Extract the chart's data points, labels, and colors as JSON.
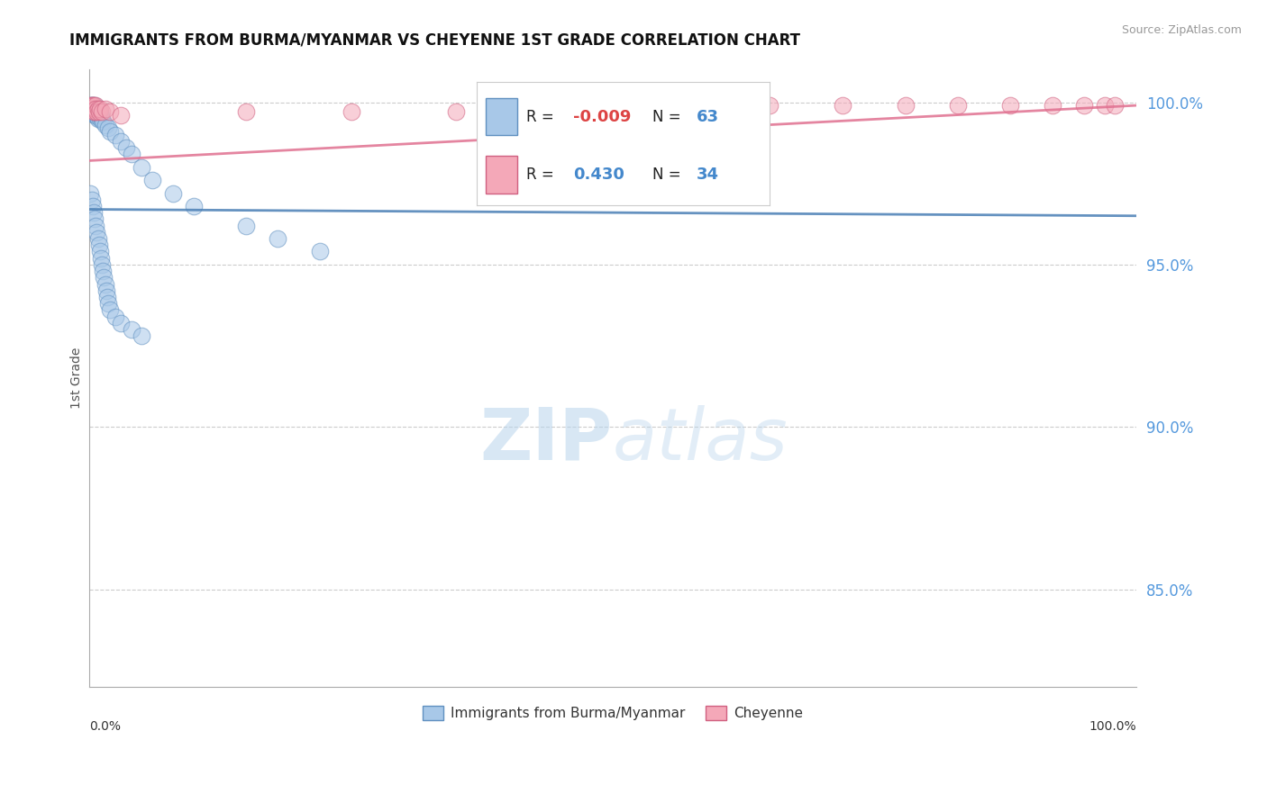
{
  "title": "IMMIGRANTS FROM BURMA/MYANMAR VS CHEYENNE 1ST GRADE CORRELATION CHART",
  "source": "Source: ZipAtlas.com",
  "ylabel": "1st Grade",
  "blue_label": "Immigrants from Burma/Myanmar",
  "pink_label": "Cheyenne",
  "blue_R": -0.009,
  "blue_N": 63,
  "pink_R": 0.43,
  "pink_N": 34,
  "blue_color": "#a8c8e8",
  "pink_color": "#f4a8b8",
  "blue_edge_color": "#6090c0",
  "pink_edge_color": "#d06080",
  "blue_line_color": "#4a7fb5",
  "pink_line_color": "#e07090",
  "background_color": "#ffffff",
  "grid_color": "#cccccc",
  "ytick_color": "#5599dd",
  "xlim": [
    0.0,
    1.0
  ],
  "ylim": [
    0.82,
    1.01
  ],
  "ytick_positions": [
    0.85,
    0.9,
    0.95,
    1.0
  ],
  "ytick_labels": [
    "85.0%",
    "90.0%",
    "95.0%",
    "100.0%"
  ],
  "blue_x": [
    0.001,
    0.001,
    0.001,
    0.002,
    0.002,
    0.002,
    0.003,
    0.003,
    0.003,
    0.004,
    0.004,
    0.005,
    0.005,
    0.005,
    0.006,
    0.006,
    0.007,
    0.007,
    0.008,
    0.008,
    0.009,
    0.01,
    0.01,
    0.011,
    0.012,
    0.013,
    0.015,
    0.018,
    0.02,
    0.025,
    0.03,
    0.035,
    0.04,
    0.05,
    0.06,
    0.08,
    0.1,
    0.15,
    0.18,
    0.22,
    0.001,
    0.002,
    0.003,
    0.004,
    0.005,
    0.006,
    0.007,
    0.008,
    0.009,
    0.01,
    0.011,
    0.012,
    0.013,
    0.014,
    0.015,
    0.016,
    0.017,
    0.018,
    0.02,
    0.025,
    0.03,
    0.04,
    0.05
  ],
  "blue_y": [
    0.999,
    0.998,
    0.997,
    0.999,
    0.998,
    0.997,
    0.999,
    0.998,
    0.997,
    0.998,
    0.997,
    0.999,
    0.998,
    0.996,
    0.997,
    0.996,
    0.998,
    0.996,
    0.997,
    0.995,
    0.996,
    0.997,
    0.995,
    0.996,
    0.995,
    0.994,
    0.993,
    0.992,
    0.991,
    0.99,
    0.988,
    0.986,
    0.984,
    0.98,
    0.976,
    0.972,
    0.968,
    0.962,
    0.958,
    0.954,
    0.972,
    0.97,
    0.968,
    0.966,
    0.964,
    0.962,
    0.96,
    0.958,
    0.956,
    0.954,
    0.952,
    0.95,
    0.948,
    0.946,
    0.944,
    0.942,
    0.94,
    0.938,
    0.936,
    0.934,
    0.932,
    0.93,
    0.928
  ],
  "pink_x": [
    0.001,
    0.001,
    0.002,
    0.002,
    0.003,
    0.003,
    0.004,
    0.004,
    0.005,
    0.005,
    0.006,
    0.006,
    0.007,
    0.008,
    0.009,
    0.01,
    0.012,
    0.015,
    0.02,
    0.03,
    0.55,
    0.65,
    0.72,
    0.78,
    0.83,
    0.88,
    0.92,
    0.95,
    0.97,
    0.98,
    0.15,
    0.25,
    0.35,
    0.45
  ],
  "pink_y": [
    0.999,
    0.998,
    0.999,
    0.998,
    0.999,
    0.998,
    0.999,
    0.997,
    0.998,
    0.997,
    0.999,
    0.998,
    0.997,
    0.998,
    0.997,
    0.998,
    0.997,
    0.998,
    0.997,
    0.996,
    0.999,
    0.999,
    0.999,
    0.999,
    0.999,
    0.999,
    0.999,
    0.999,
    0.999,
    0.999,
    0.997,
    0.997,
    0.997,
    0.997
  ],
  "blue_trend_y0": 0.967,
  "blue_trend_y1": 0.965,
  "pink_trend_y0": 0.982,
  "pink_trend_y1": 0.999,
  "watermark_text": "ZIPatlas",
  "watermark_color": "#c8dff0"
}
